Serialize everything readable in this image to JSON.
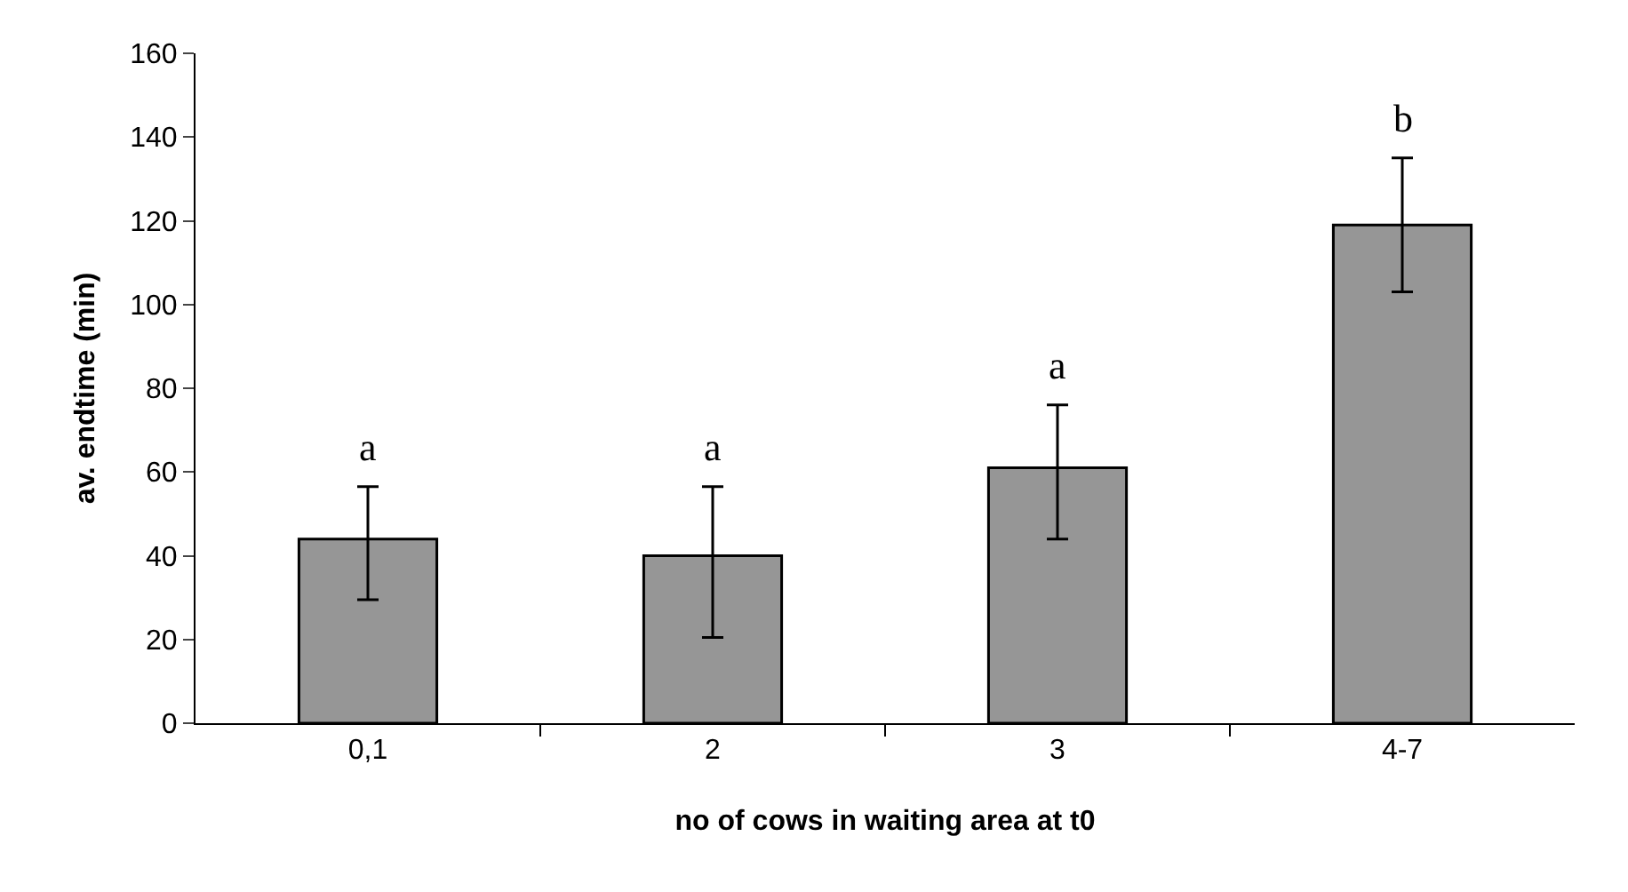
{
  "chart_data": {
    "type": "bar",
    "xlabel": "no of cows in waiting area at t0",
    "ylabel": "av. endtime (min)",
    "categories": [
      "0,1",
      "2",
      "3",
      "4-7"
    ],
    "values": [
      44,
      40,
      61,
      119
    ],
    "errors": [
      [
        29.5,
        56.5
      ],
      [
        20.5,
        56.5
      ],
      [
        44,
        76
      ],
      [
        103,
        135
      ]
    ],
    "color": "#969696",
    "ylim": [
      0,
      160
    ],
    "yticks": [
      0,
      20,
      40,
      60,
      80,
      100,
      120,
      140,
      160
    ],
    "grid": false,
    "annotations": [
      "a",
      "a",
      "a",
      "b"
    ]
  }
}
